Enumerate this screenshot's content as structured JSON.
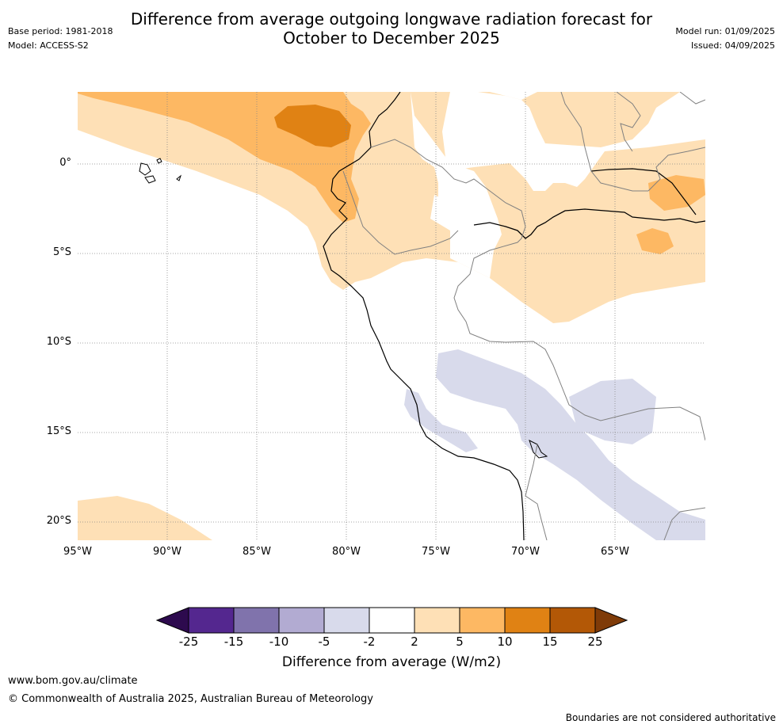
{
  "title_line1": "Difference from average outgoing longwave radiation forecast for",
  "title_line2": "October to December 2025",
  "base_period": "Base period: 1981-2018",
  "model": "Model: ACCESS-S2",
  "model_run": "Model run: 01/09/2025",
  "issued": "Issued: 04/09/2025",
  "lat_labels": [
    "0°",
    "5°S",
    "10°S",
    "15°S",
    "20°S"
  ],
  "lon_labels": [
    "95°W",
    "90°W",
    "85°W",
    "80°W",
    "75°W",
    "70°W",
    "65°W"
  ],
  "colorbar": {
    "ticks": [
      "-25",
      "-15",
      "-10",
      "-5",
      "-2",
      "2",
      "5",
      "10",
      "15",
      "25"
    ],
    "colors": [
      "#2d0a4e",
      "#54278f",
      "#8073ac",
      "#b2abd2",
      "#d8daeb",
      "#ffffff",
      "#fee0b6",
      "#fdb863",
      "#e08214",
      "#b35806",
      "#7f3b08"
    ],
    "title": "Difference from average (W/m2)"
  },
  "footer_url": "www.bom.gov.au/climate",
  "footer_copyright": "© Commonwealth of Australia 2025, Australian Bureau of Meteorology",
  "disclaimer": "Boundaries are not considered authoritative"
}
